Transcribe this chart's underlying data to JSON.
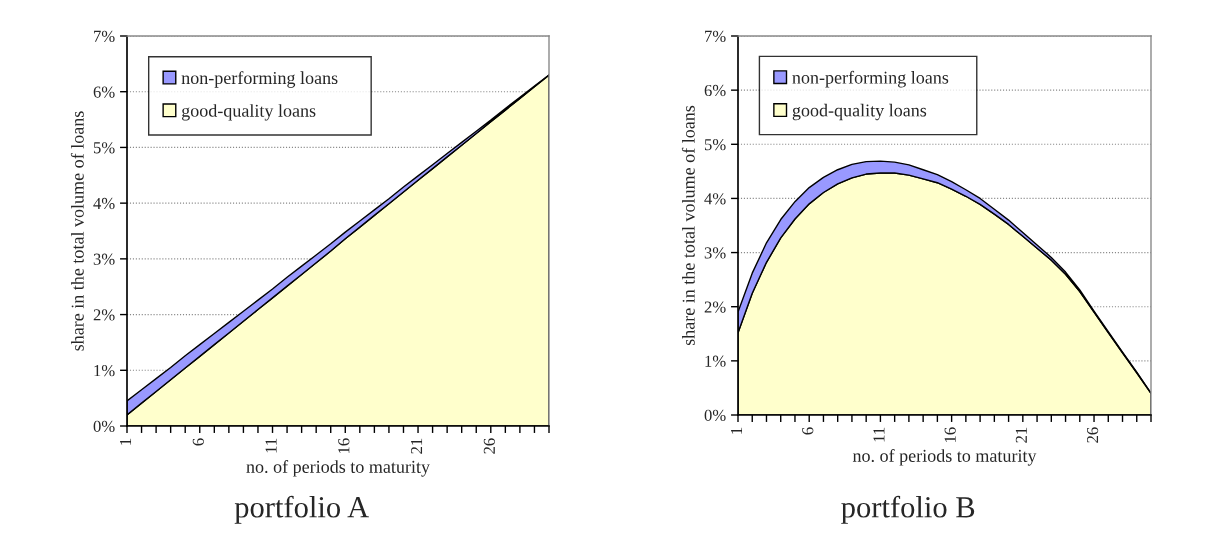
{
  "chart_data": [
    {
      "type": "area",
      "stacked": true,
      "title": "portfolio A",
      "xlabel": "no. of periods to maturity",
      "ylabel": "share in the total volume of loans",
      "categories": [
        "1",
        null,
        null,
        null,
        null,
        "6",
        null,
        null,
        null,
        null,
        "11",
        null,
        null,
        null,
        null,
        "16",
        null,
        null,
        null,
        null,
        "21",
        null,
        null,
        null,
        null,
        "26",
        null,
        null,
        null,
        null
      ],
      "series": [
        {
          "name": "good-quality loans",
          "color": "#ffffcc",
          "values": [
            0.2,
            0.41,
            0.62,
            0.83,
            1.04,
            1.25,
            1.46,
            1.67,
            1.88,
            2.09,
            2.3,
            2.51,
            2.72,
            2.93,
            3.14,
            3.36,
            3.57,
            3.78,
            3.99,
            4.2,
            4.41,
            4.62,
            4.83,
            5.04,
            5.25,
            5.46,
            5.67,
            5.88,
            6.09,
            6.3
          ]
        },
        {
          "name": "non-performing loans",
          "color": "#9999ff",
          "values": [
            0.25,
            0.24,
            0.23,
            0.22,
            0.22,
            0.21,
            0.2,
            0.19,
            0.18,
            0.17,
            0.16,
            0.16,
            0.15,
            0.14,
            0.13,
            0.12,
            0.11,
            0.1,
            0.09,
            0.09,
            0.08,
            0.07,
            0.06,
            0.05,
            0.04,
            0.03,
            0.03,
            0.02,
            0.01,
            0.0
          ]
        }
      ],
      "ylim": [
        0,
        7
      ],
      "yticks": [
        {
          "value": 0,
          "label": "0%"
        },
        {
          "value": 1,
          "label": "1%"
        },
        {
          "value": 2,
          "label": "2%"
        },
        {
          "value": 3,
          "label": "3%"
        },
        {
          "value": 4,
          "label": "4%"
        },
        {
          "value": 5,
          "label": "5%"
        },
        {
          "value": 6,
          "label": "6%"
        },
        {
          "value": 7,
          "label": "7%"
        }
      ],
      "grid": "y",
      "legend": "top left"
    },
    {
      "type": "area",
      "stacked": true,
      "title": "portfolio B",
      "xlabel": "no. of periods to maturity",
      "ylabel": "share in the total volume of loans",
      "categories": [
        "1",
        null,
        null,
        null,
        null,
        "6",
        null,
        null,
        null,
        null,
        "11",
        null,
        null,
        null,
        null,
        "16",
        null,
        null,
        null,
        null,
        "21",
        null,
        null,
        null,
        null,
        "26",
        null,
        null,
        null,
        null
      ],
      "series": [
        {
          "name": "good-quality loans",
          "color": "#ffffcc",
          "values": [
            1.52,
            2.25,
            2.82,
            3.27,
            3.62,
            3.9,
            4.11,
            4.27,
            4.38,
            4.45,
            4.47,
            4.47,
            4.43,
            4.36,
            4.29,
            4.17,
            4.04,
            3.89,
            3.71,
            3.52,
            3.3,
            3.08,
            2.86,
            2.6,
            2.28,
            1.9,
            1.52,
            1.15,
            0.78,
            0.4
          ]
        },
        {
          "name": "non-performing loans",
          "color": "#9999ff",
          "values": [
            0.38,
            0.37,
            0.36,
            0.34,
            0.32,
            0.3,
            0.28,
            0.26,
            0.25,
            0.23,
            0.22,
            0.2,
            0.19,
            0.17,
            0.15,
            0.14,
            0.12,
            0.11,
            0.09,
            0.08,
            0.07,
            0.06,
            0.05,
            0.04,
            0.03,
            0.02,
            0.02,
            0.01,
            0.01,
            0.0
          ]
        }
      ],
      "ylim": [
        0,
        7
      ],
      "yticks": [
        {
          "value": 0,
          "label": "0%"
        },
        {
          "value": 1,
          "label": "1%"
        },
        {
          "value": 2,
          "label": "2%"
        },
        {
          "value": 3,
          "label": "3%"
        },
        {
          "value": 4,
          "label": "4%"
        },
        {
          "value": 5,
          "label": "5%"
        },
        {
          "value": 6,
          "label": "6%"
        },
        {
          "value": 7,
          "label": "7%"
        }
      ],
      "grid": "y",
      "legend": "top left"
    }
  ]
}
